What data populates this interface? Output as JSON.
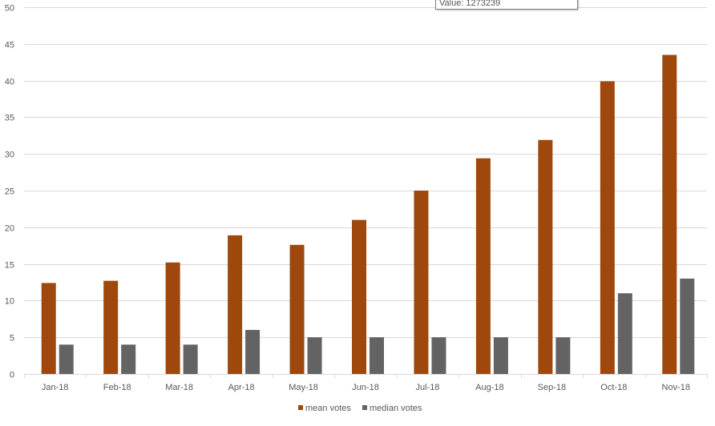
{
  "chart_data": {
    "type": "bar",
    "categories": [
      "Jan-18",
      "Feb-18",
      "Mar-18",
      "Apr-18",
      "May-18",
      "Jun-18",
      "Jul-18",
      "Aug-18",
      "Sep-18",
      "Oct-18",
      "Nov-18"
    ],
    "series": [
      {
        "name": "mean votes",
        "color": "#9E480E",
        "values": [
          12.4,
          12.7,
          15.2,
          18.9,
          17.6,
          21.0,
          25.0,
          29.4,
          31.9,
          39.9,
          43.5
        ]
      },
      {
        "name": "median votes",
        "color": "#636363",
        "values": [
          4,
          4,
          4,
          6,
          5,
          5,
          5,
          5,
          5,
          11,
          13
        ]
      }
    ],
    "ylim": [
      0,
      50
    ],
    "yticks": [
      0,
      5,
      10,
      15,
      20,
      25,
      30,
      35,
      40,
      45,
      50
    ],
    "grid": true,
    "legend_position": "bottom",
    "title": "",
    "xlabel": "",
    "ylabel": ""
  },
  "tooltip": {
    "text": "Value: 1273239"
  }
}
